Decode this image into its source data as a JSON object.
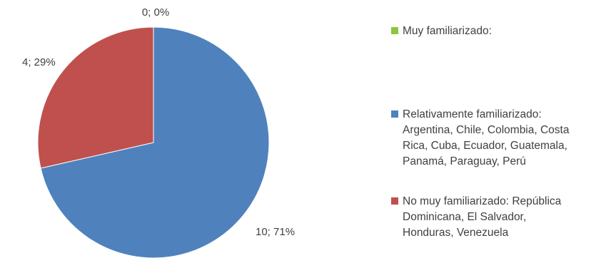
{
  "chart_data": {
    "type": "pie",
    "title": "",
    "slices": [
      {
        "label": "Muy familiarizado:",
        "value": 0,
        "percent": 0,
        "data_label": "0; 0%",
        "color": "#8cc63f"
      },
      {
        "label": "Relativamente familiarizado: Argentina, Chile, Colombia, Costa Rica, Cuba, Ecuador, Guatemala, Panamá, Paraguay, Perú",
        "value": 10,
        "percent": 71,
        "data_label": "10; 71%",
        "color": "#4f81bd"
      },
      {
        "label": "No muy familiarizado: República Dominicana, El Salvador, Honduras, Venezuela",
        "value": 4,
        "percent": 29,
        "data_label": "4; 29%",
        "color": "#c0504d"
      }
    ],
    "legend_position": "right"
  },
  "legend": {
    "items": [
      {
        "lines": [
          "Muy familiarizado:"
        ]
      },
      {
        "lines": [
          "Relativamente familiarizado:",
          "Argentina, Chile, Colombia, Costa",
          "Rica, Cuba, Ecuador, Guatemala,",
          "Panamá, Paraguay, Perú"
        ]
      },
      {
        "lines": [
          "No muy familiarizado: República",
          "Dominicana, El Salvador,",
          "Honduras, Venezuela"
        ]
      }
    ]
  }
}
